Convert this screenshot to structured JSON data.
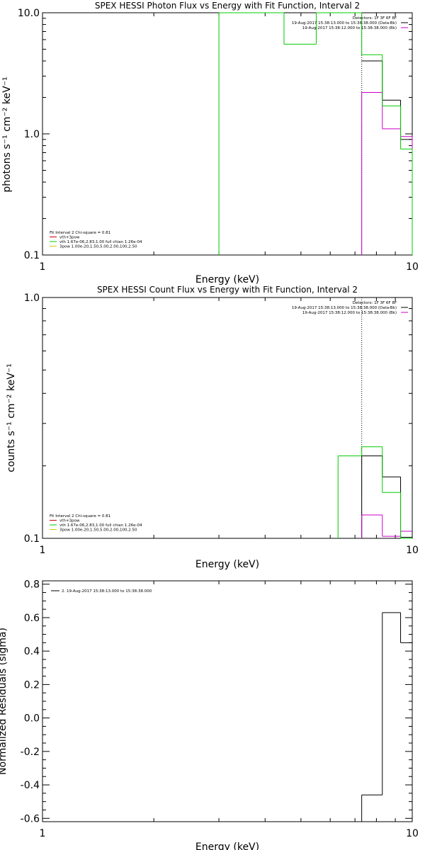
{
  "chart_data": [
    {
      "type": "line",
      "title": "SPEX HESSI Photon Flux vs Energy with Fit Function, Interval 2",
      "xlabel": "Energy (keV)",
      "ylabel": "photons s⁻¹ cm⁻² keV⁻¹",
      "xscale": "log",
      "yscale": "log",
      "xlim": [
        1,
        10
      ],
      "ylim": [
        0.1,
        10
      ],
      "xticks": [
        "1",
        "10"
      ],
      "yticks": [
        "0.1",
        "1.0",
        "10.0"
      ],
      "ytick_values": [
        0.1,
        1,
        10
      ],
      "legend_topright": [
        "Detectors: 1F 3F 6F 8F",
        "19-Aug-2017 15:38:13.000 to 15:38:38.000 (Data-Bk)",
        "19-Aug-2017 15:38:12.000 to 15:38:38.000 (Bk)"
      ],
      "legend_topright_colors": [
        "#000000",
        "#000000",
        "#cc00cc"
      ],
      "legend_bottomleft": [
        "Fit Interval 2   Chi-square = 0.81",
        "vth+3pow",
        "vth 1.67e-06,2.83,1.00  full chian 1.26e-04",
        "3pow 1.00e-20,1.50,5.00,2.00,100,2.50"
      ],
      "legend_bottomleft_colors": [
        "#000000",
        "#cc0000",
        "#00cc00",
        "#cccc00"
      ],
      "vline_x": 7.3,
      "series": [
        {
          "color": "#000000",
          "steps": [
            [
              7.3,
              8.3,
              4.0
            ],
            [
              8.3,
              9.3,
              1.9
            ],
            [
              9.3,
              10.0,
              0.9
            ]
          ]
        },
        {
          "color": "#cc00cc",
          "steps": [
            [
              7.3,
              8.3,
              2.2
            ],
            [
              8.3,
              9.3,
              1.1
            ],
            [
              9.3,
              10.0,
              0.95
            ]
          ],
          "drops": [
            7.3,
            10.0
          ]
        },
        {
          "color": "#00cc00",
          "steps": [
            [
              3.0,
              4.5,
              10
            ],
            [
              4.5,
              5.5,
              5.5
            ],
            [
              5.5,
              7.3,
              10
            ],
            [
              7.3,
              8.3,
              4.5
            ],
            [
              8.3,
              9.3,
              1.7
            ],
            [
              9.3,
              10.0,
              0.75
            ]
          ],
          "drops": [
            3.0,
            10.0
          ]
        }
      ]
    },
    {
      "type": "line",
      "title": "SPEX HESSI Count Flux vs Energy with Fit Function, Interval 2",
      "xlabel": "Energy (keV)",
      "ylabel": "counts s⁻¹ cm⁻² keV⁻¹",
      "xscale": "log",
      "yscale": "log",
      "xlim": [
        1,
        10
      ],
      "ylim": [
        0.1,
        1.0
      ],
      "xticks": [
        "1",
        "10"
      ],
      "yticks": [
        "0.1",
        "1.0"
      ],
      "ytick_values": [
        0.1,
        1.0
      ],
      "legend_topright": [
        "Detectors: 1F 3F 6F 8F",
        "19-Aug-2017 15:38:13.000 to 15:38:38.000 (Data-Bk)",
        "19-Aug-2017 15:38:12.000 to 15:38:38.000 (Bk)"
      ],
      "legend_topright_colors": [
        "#000000",
        "#000000",
        "#cc00cc"
      ],
      "legend_bottomleft": [
        "Fit Interval 2   Chi-square = 0.81",
        "vth+3pow",
        "vth 1.67e-06,2.83,1.00  full chian 1.26e-04",
        "3pow 1.00e-20,1.50,5.00,2.00,100,2.50"
      ],
      "legend_bottomleft_colors": [
        "#000000",
        "#cc0000",
        "#00cc00",
        "#cccc00"
      ],
      "vline_x": 7.3,
      "series": [
        {
          "color": "#000000",
          "steps": [
            [
              7.3,
              8.3,
              0.22
            ],
            [
              8.3,
              9.3,
              0.18
            ],
            [
              9.3,
              10.0,
              0.101
            ]
          ],
          "drops": [
            7.3
          ]
        },
        {
          "color": "#cc00cc",
          "steps": [
            [
              7.3,
              8.3,
              0.125
            ],
            [
              8.3,
              9.3,
              0.102
            ],
            [
              9.3,
              10.0,
              0.107
            ]
          ],
          "drops": [
            7.3
          ]
        },
        {
          "color": "#00cc00",
          "steps": [
            [
              6.3,
              7.3,
              0.22
            ],
            [
              7.3,
              8.3,
              0.24
            ],
            [
              8.3,
              9.3,
              0.155
            ],
            [
              9.3,
              10.0,
              0.1
            ]
          ],
          "drops": [
            6.3
          ]
        }
      ]
    },
    {
      "type": "line",
      "title": "",
      "xlabel": "Energy (keV)",
      "ylabel": "Normalized Residuals (sigma)",
      "xscale": "log",
      "yscale": "linear",
      "xlim": [
        1,
        10
      ],
      "ylim": [
        -0.62,
        0.82
      ],
      "xticks": [
        "1",
        "10"
      ],
      "yticks": [
        "-0.6",
        "-0.4",
        "-0.2",
        "0.0",
        "0.2",
        "0.4",
        "0.6",
        "0.8"
      ],
      "ytick_values": [
        -0.6,
        -0.4,
        -0.2,
        0.0,
        0.2,
        0.4,
        0.6,
        0.8
      ],
      "legend_topleft": [
        "2. 19-Aug-2017 15:38:13.000 to 15:38:38.000"
      ],
      "series": [
        {
          "color": "#000000",
          "steps": [
            [
              7.3,
              8.3,
              -0.46
            ],
            [
              8.3,
              9.3,
              0.63
            ],
            [
              9.3,
              10.0,
              0.45
            ]
          ],
          "drops": [
            7.3
          ]
        }
      ]
    }
  ]
}
